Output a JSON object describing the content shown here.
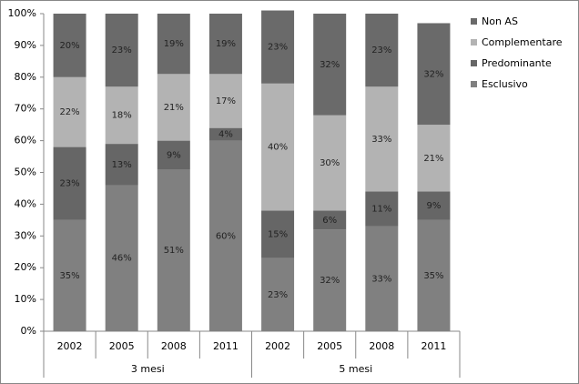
{
  "chart_data": {
    "type": "stacked_bar",
    "categories": [
      "2002",
      "2005",
      "2008",
      "2011",
      "2002",
      "2005",
      "2008",
      "2011"
    ],
    "groups": [
      "3 mesi",
      "5 mesi"
    ],
    "series": [
      {
        "name": "Esclusivo",
        "color": "#808080",
        "values": [
          35,
          46,
          51,
          60,
          23,
          32,
          33,
          35
        ],
        "value_labels": [
          "35%",
          "46%",
          "51%",
          "60%",
          "23%",
          "32%",
          "33%",
          "35%"
        ]
      },
      {
        "name": "Predominante",
        "color": "#666666",
        "values": [
          23,
          13,
          9,
          4,
          15,
          6,
          11,
          9
        ],
        "value_labels": [
          "23%",
          "13%",
          "9%",
          "4%",
          "15%",
          "6%",
          "11%",
          "9%"
        ]
      },
      {
        "name": "Complementare",
        "color": "#b3b3b3",
        "values": [
          22,
          18,
          21,
          17,
          40,
          30,
          33,
          21
        ],
        "value_labels": [
          "22%",
          "18%",
          "21%",
          "17%",
          "40%",
          "30%",
          "33%",
          "21%"
        ]
      },
      {
        "name": "Non AS",
        "color": "#6a6a6a",
        "values": [
          20,
          23,
          19,
          19,
          23,
          32,
          23,
          32
        ],
        "value_labels": [
          "20%",
          "23%",
          "19%",
          "19%",
          "23%",
          "32%",
          "23%",
          "32%"
        ]
      }
    ],
    "ylim": [
      0,
      100
    ],
    "yticks": [
      {
        "value": 0,
        "label": "0%"
      },
      {
        "value": 10,
        "label": "10%"
      },
      {
        "value": 20,
        "label": "20%"
      },
      {
        "value": 30,
        "label": "30%"
      },
      {
        "value": 40,
        "label": "40%"
      },
      {
        "value": 50,
        "label": "50%"
      },
      {
        "value": 60,
        "label": "60%"
      },
      {
        "value": 70,
        "label": "70%"
      },
      {
        "value": 80,
        "label": "80%"
      },
      {
        "value": 90,
        "label": "90%"
      },
      {
        "value": 100,
        "label": "100%"
      }
    ],
    "grid": false
  }
}
